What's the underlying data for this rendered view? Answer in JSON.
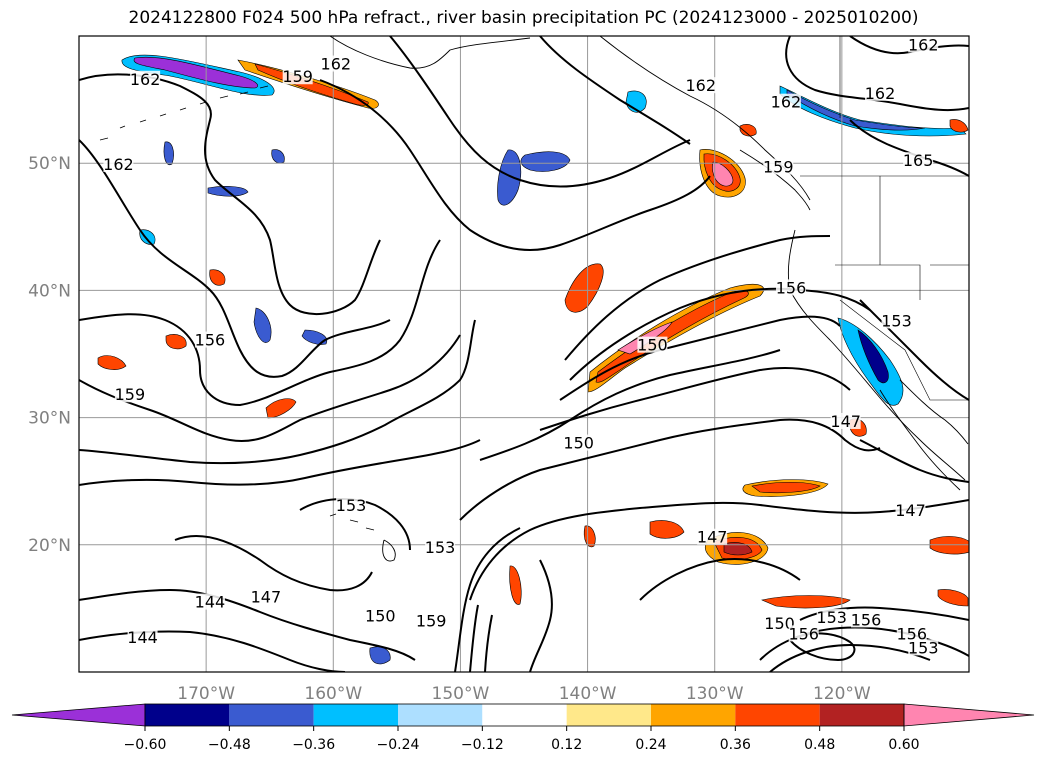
{
  "title": "2024122800 F024 500 hPa refract., river basin precipitation PC (2024123000 - 2025010200)",
  "map": {
    "projection": "equirectangular",
    "lon_range": [
      -180,
      -110
    ],
    "lat_range": [
      10,
      60
    ],
    "gridlines": true,
    "lon_ticks": [
      {
        "lon": -170,
        "label": "170°W"
      },
      {
        "lon": -160,
        "label": "160°W"
      },
      {
        "lon": -150,
        "label": "150°W"
      },
      {
        "lon": -140,
        "label": "140°W"
      },
      {
        "lon": -130,
        "label": "130°W"
      },
      {
        "lon": -120,
        "label": "120°W"
      }
    ],
    "lat_ticks": [
      {
        "lat": 50,
        "label": "50°N"
      },
      {
        "lat": 40,
        "label": "40°N"
      },
      {
        "lat": 30,
        "label": "30°N"
      },
      {
        "lat": 20,
        "label": "20°N"
      }
    ],
    "tick_color": "#808080"
  },
  "contour_labels": [
    {
      "text": "162",
      "lon": -174.8,
      "lat": 56.4
    },
    {
      "text": "159",
      "lon": -162.8,
      "lat": 56.6
    },
    {
      "text": "162",
      "lon": -159.8,
      "lat": 57.6
    },
    {
      "text": "162",
      "lon": -176.9,
      "lat": 49.7
    },
    {
      "text": "156",
      "lon": -169.7,
      "lat": 35.9
    },
    {
      "text": "159",
      "lon": -176.0,
      "lat": 31.6
    },
    {
      "text": "153",
      "lon": -158.6,
      "lat": 22.9
    },
    {
      "text": "144",
      "lon": -169.7,
      "lat": 15.3
    },
    {
      "text": "147",
      "lon": -165.3,
      "lat": 15.7
    },
    {
      "text": "144",
      "lon": -175.0,
      "lat": 12.5
    },
    {
      "text": "150",
      "lon": -156.3,
      "lat": 14.2
    },
    {
      "text": "153",
      "lon": -151.6,
      "lat": 19.6
    },
    {
      "text": "159",
      "lon": -152.3,
      "lat": 13.8
    },
    {
      "text": "150",
      "lon": -140.7,
      "lat": 27.8
    },
    {
      "text": "150",
      "lon": -134.9,
      "lat": 35.5
    },
    {
      "text": "156",
      "lon": -124.0,
      "lat": 40.0
    },
    {
      "text": "159",
      "lon": -125.0,
      "lat": 49.5
    },
    {
      "text": "162",
      "lon": -131.1,
      "lat": 55.9
    },
    {
      "text": "162",
      "lon": -124.4,
      "lat": 54.6
    },
    {
      "text": "162",
      "lon": -117.0,
      "lat": 55.3
    },
    {
      "text": "162",
      "lon": -113.6,
      "lat": 59.1
    },
    {
      "text": "165",
      "lon": -114.0,
      "lat": 50.0
    },
    {
      "text": "153",
      "lon": -115.7,
      "lat": 37.4
    },
    {
      "text": "147",
      "lon": -119.7,
      "lat": 29.5
    },
    {
      "text": "147",
      "lon": -114.6,
      "lat": 22.5
    },
    {
      "text": "147",
      "lon": -130.2,
      "lat": 20.4
    },
    {
      "text": "150",
      "lon": -124.9,
      "lat": 13.6
    },
    {
      "text": "156",
      "lon": -123.0,
      "lat": 12.8
    },
    {
      "text": "153",
      "lon": -120.8,
      "lat": 14.1
    },
    {
      "text": "156",
      "lon": -118.1,
      "lat": 13.9
    },
    {
      "text": "156",
      "lon": -114.5,
      "lat": 12.8
    },
    {
      "text": "153",
      "lon": -113.6,
      "lat": 11.7
    }
  ],
  "colorbar": {
    "levels": [
      -0.72,
      -0.6,
      -0.48,
      -0.36,
      -0.24,
      -0.12,
      0.12,
      0.24,
      0.36,
      0.48,
      0.6,
      0.72
    ],
    "colors": [
      "#9b30d8",
      "#00008b",
      "#3a5bd0",
      "#00bfff",
      "#addfff",
      "#ffffff",
      "#ffe88a",
      "#ffa500",
      "#ff4500",
      "#b22222",
      "#ff85b0"
    ],
    "extend": "both",
    "tick_labels": [
      "−0.60",
      "−0.48",
      "−0.36",
      "−0.24",
      "−0.12",
      "0.12",
      "0.24",
      "0.36",
      "0.48",
      "0.60"
    ]
  },
  "colors": {
    "contour": "#000000",
    "coastline": "#000000",
    "grid": "#999999"
  }
}
